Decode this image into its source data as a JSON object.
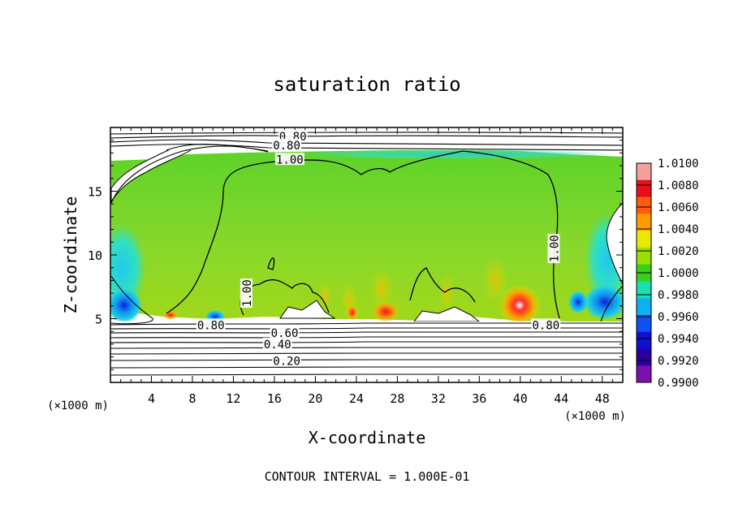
{
  "chart_data": {
    "type": "heatmap",
    "title": "saturation ratio",
    "xlabel": "X-coordinate",
    "ylabel": "Z-coordinate",
    "x_unit_note": "(×1000 m)",
    "y_unit_note": "(×1000 m)",
    "footer": "CONTOUR INTERVAL = 1.000E-01",
    "xlim": [
      0,
      50
    ],
    "ylim": [
      0,
      20
    ],
    "x_ticks": [
      4,
      8,
      12,
      16,
      20,
      24,
      28,
      32,
      36,
      40,
      44,
      48
    ],
    "y_ticks": [
      5,
      10,
      15
    ],
    "colorbar": {
      "min": 0.99,
      "max": 1.01,
      "labels": [
        "1.0100",
        "1.0080",
        "1.0060",
        "1.0040",
        "1.0020",
        "1.0000",
        "0.9980",
        "0.9960",
        "0.9940",
        "0.9920",
        "0.9900"
      ],
      "colors": [
        "#f4a0a0",
        "#e8101a",
        "#ff5a12",
        "#ff9a00",
        "#e8e800",
        "#98e000",
        "#38d018",
        "#18e0b0",
        "#10b0f0",
        "#1050f0",
        "#1010d0",
        "#2a00a0",
        "#7a10b0"
      ]
    },
    "fill_region": {
      "z_bottom": 5,
      "z_top": 17.8,
      "dominant_value": 1.0
    },
    "hotspots": [
      {
        "x": 26.5,
        "z": 5.5,
        "value": 1.006
      },
      {
        "x": 22.5,
        "z": 5.8,
        "value": 1.004
      },
      {
        "x": 40.0,
        "z": 6.0,
        "value": 1.008
      },
      {
        "x": 40.0,
        "z": 5.5,
        "value": 1.01
      },
      {
        "x": 33.5,
        "z": 5.6,
        "value": 1.004
      },
      {
        "x": 1.5,
        "z": 6.0,
        "value": 0.993
      },
      {
        "x": 48.5,
        "z": 6.5,
        "value": 0.994
      },
      {
        "x": 47.0,
        "z": 10.0,
        "value": 0.995
      },
      {
        "x": 2.0,
        "z": 10.0,
        "value": 0.997
      }
    ],
    "contour_labels": [
      {
        "text": "0.80",
        "x": 17.8,
        "z": 19.3
      },
      {
        "text": "0.80",
        "x": 17.2,
        "z": 18.6
      },
      {
        "text": "1.00",
        "x": 17.5,
        "z": 17.5
      },
      {
        "text": "1.00",
        "x": 43.3,
        "z": 10.5,
        "rotate": -90
      },
      {
        "text": "1.00",
        "x": 13.3,
        "z": 7.0,
        "rotate": -90
      },
      {
        "text": "0.80",
        "x": 9.8,
        "z": 4.5
      },
      {
        "text": "0.80",
        "x": 42.5,
        "z": 4.5
      },
      {
        "text": "0.60",
        "x": 17.0,
        "z": 3.9
      },
      {
        "text": "0.40",
        "x": 16.3,
        "z": 3.0
      },
      {
        "text": "0.20",
        "x": 17.2,
        "z": 1.7
      }
    ]
  }
}
